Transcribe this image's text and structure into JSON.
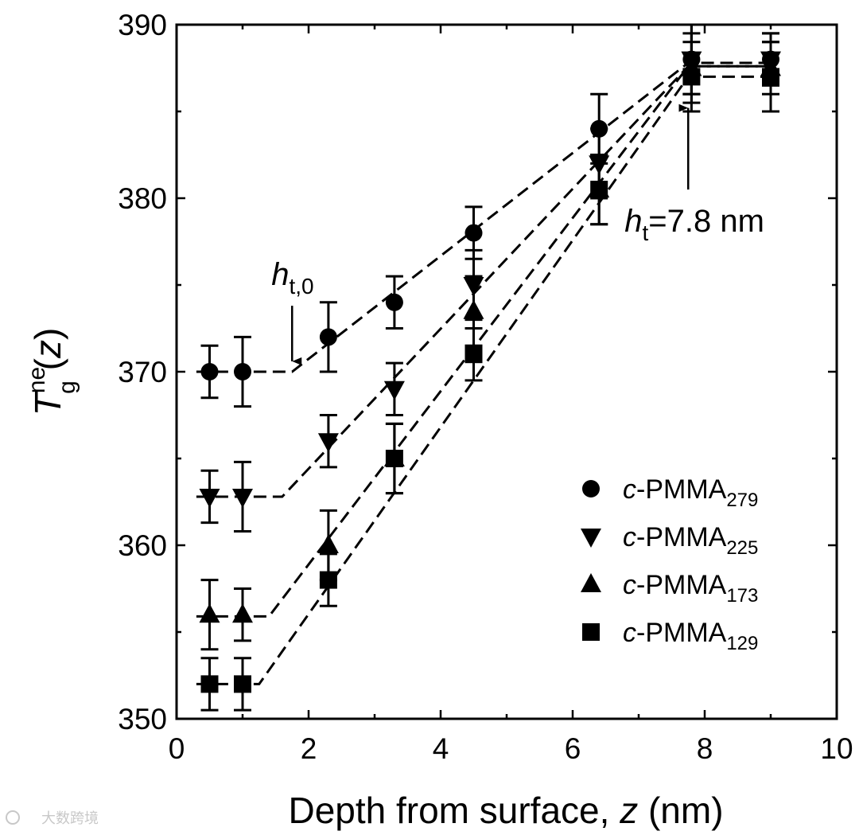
{
  "chart_data": {
    "type": "scatter",
    "title": "",
    "xlabel": "Depth from surface, z (nm)",
    "ylabel": "T_g^ne (z)",
    "xlabel_parts": {
      "main": "Depth from surface, ",
      "var": "z",
      "unit": " (nm)"
    },
    "ylabel_parts": {
      "T": "T",
      "sup": "ne",
      "sub": "g",
      "arg": "(z)"
    },
    "xlim": [
      0,
      10
    ],
    "ylim": [
      350,
      390
    ],
    "x_ticks": [
      0,
      2,
      4,
      6,
      8,
      10
    ],
    "y_ticks": [
      350,
      360,
      370,
      380,
      390
    ],
    "grid": false,
    "legend_position": "bottom-right",
    "series": [
      {
        "name": "c-PMMA279",
        "label_prefix": "c",
        "label_main": "-PMMA",
        "label_sub": "279",
        "marker": "circle",
        "points": [
          {
            "x": 0.5,
            "y": 370.0,
            "err": 1.5
          },
          {
            "x": 1.0,
            "y": 370.0,
            "err": 2.0
          },
          {
            "x": 2.3,
            "y": 372.0,
            "err": 2.0
          },
          {
            "x": 3.3,
            "y": 374.0,
            "err": 1.5
          },
          {
            "x": 4.5,
            "y": 378.0,
            "err": 1.5
          },
          {
            "x": 6.4,
            "y": 384.0,
            "err": 2.0
          },
          {
            "x": 7.8,
            "y": 388.0,
            "err": 2.0
          },
          {
            "x": 9.0,
            "y": 388.0,
            "err": 1.5
          }
        ],
        "fit": [
          [
            0.3,
            370.0
          ],
          [
            1.75,
            370.0
          ],
          [
            7.75,
            387.8
          ],
          [
            9.0,
            387.8
          ]
        ]
      },
      {
        "name": "c-PMMA225",
        "label_prefix": "c",
        "label_main": "-PMMA",
        "label_sub": "225",
        "marker": "triangle-down",
        "points": [
          {
            "x": 0.5,
            "y": 362.8,
            "err": 1.5
          },
          {
            "x": 1.0,
            "y": 362.8,
            "err": 2.0
          },
          {
            "x": 2.3,
            "y": 366.0,
            "err": 1.5
          },
          {
            "x": 3.3,
            "y": 369.0,
            "err": 1.5
          },
          {
            "x": 4.5,
            "y": 375.0,
            "err": 2.0
          },
          {
            "x": 6.4,
            "y": 382.0,
            "err": 2.0
          },
          {
            "x": 7.8,
            "y": 388.0,
            "err": 2.0
          },
          {
            "x": 9.0,
            "y": 388.0,
            "err": 1.5
          }
        ],
        "fit": [
          [
            0.3,
            362.8
          ],
          [
            1.6,
            362.8
          ],
          [
            7.75,
            387.6
          ],
          [
            9.0,
            387.6
          ]
        ]
      },
      {
        "name": "c-PMMA173",
        "label_prefix": "c",
        "label_main": "-PMMA",
        "label_sub": "173",
        "marker": "triangle-up",
        "points": [
          {
            "x": 0.5,
            "y": 356.0,
            "err": 2.0
          },
          {
            "x": 1.0,
            "y": 356.0,
            "err": 1.5
          },
          {
            "x": 2.3,
            "y": 360.0,
            "err": 2.0
          },
          {
            "x": 3.3,
            "y": 365.0,
            "err": 2.0
          },
          {
            "x": 4.5,
            "y": 373.5,
            "err": 2.0
          },
          {
            "x": 6.4,
            "y": 380.5,
            "err": 2.0
          },
          {
            "x": 7.8,
            "y": 387.5,
            "err": 2.0
          },
          {
            "x": 9.0,
            "y": 387.5,
            "err": 1.5
          }
        ],
        "fit": [
          [
            0.3,
            355.9
          ],
          [
            1.4,
            355.9
          ],
          [
            7.75,
            387.6
          ],
          [
            9.0,
            387.6
          ]
        ]
      },
      {
        "name": "c-PMMA129",
        "label_prefix": "c",
        "label_main": "-PMMA",
        "label_sub": "129",
        "marker": "square",
        "points": [
          {
            "x": 0.5,
            "y": 352.0,
            "err": 1.5
          },
          {
            "x": 1.0,
            "y": 352.0,
            "err": 1.5
          },
          {
            "x": 2.3,
            "y": 358.0,
            "err": 1.5
          },
          {
            "x": 3.3,
            "y": 365.0,
            "err": 2.0
          },
          {
            "x": 4.5,
            "y": 371.0,
            "err": 1.5
          },
          {
            "x": 6.4,
            "y": 380.5,
            "err": 2.0
          },
          {
            "x": 7.8,
            "y": 387.0,
            "err": 2.0
          },
          {
            "x": 9.0,
            "y": 387.0,
            "err": 2.0
          }
        ],
        "fit": [
          [
            0.3,
            352.0
          ],
          [
            1.25,
            352.0
          ],
          [
            7.75,
            387.0
          ],
          [
            9.0,
            387.0
          ]
        ]
      }
    ],
    "annotations": [
      {
        "name": "h_t0",
        "main": "h",
        "sub": "t,0",
        "suffix": "",
        "arrow_x": 1.75,
        "arrow_y_from": 373.8,
        "arrow_y_to": 370.6
      },
      {
        "name": "h_t",
        "main": "h",
        "sub": "t",
        "suffix": "=7.8 nm",
        "arrow_x": 7.75,
        "arrow_y_from": 380.5,
        "arrow_y_to": 385.2
      }
    ]
  },
  "watermark": {
    "text": "大数跨境"
  }
}
